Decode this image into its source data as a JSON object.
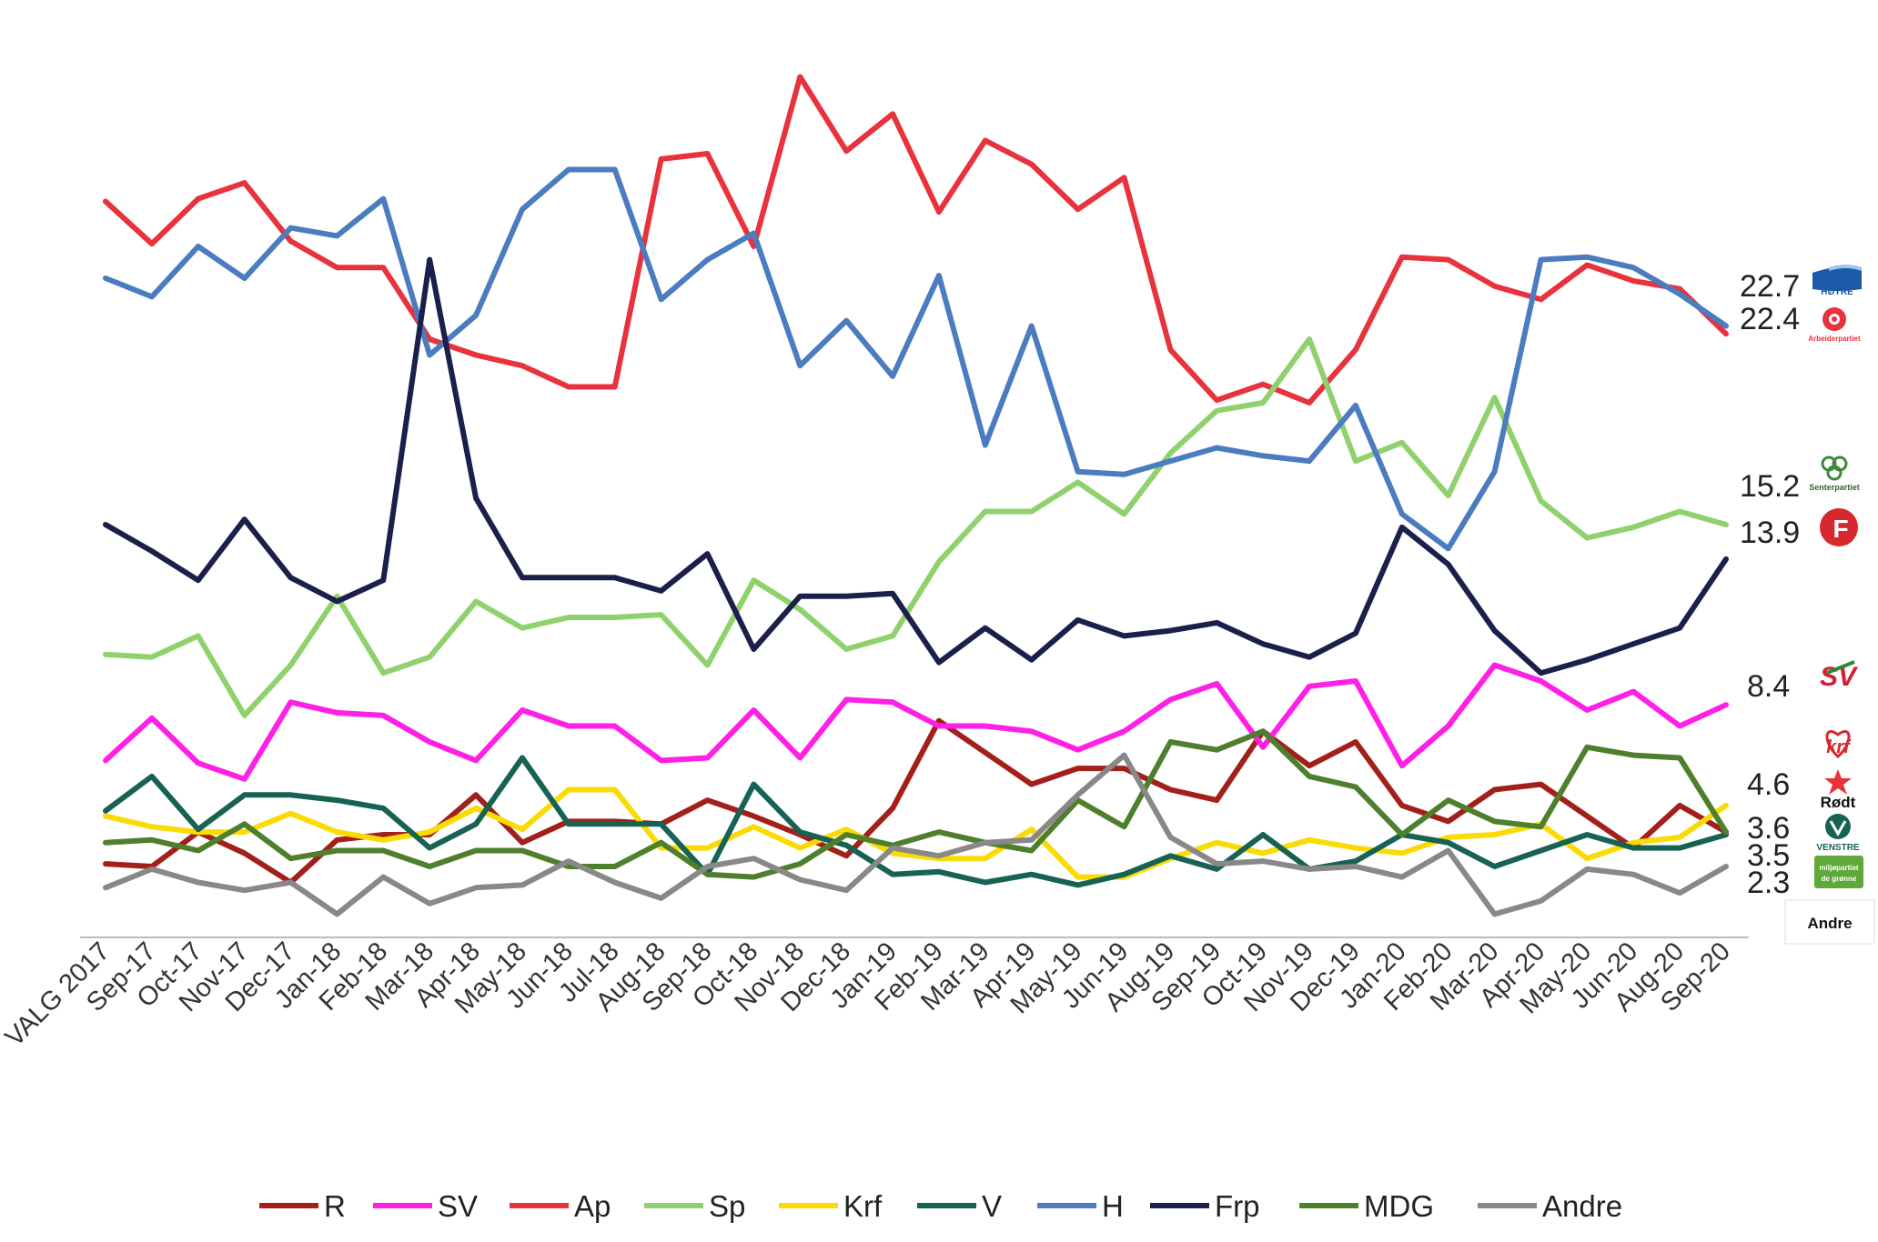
{
  "chart_data": {
    "type": "line",
    "title": "",
    "xlabel": "",
    "ylabel": "",
    "ylim": [
      0,
      35
    ],
    "grid": false,
    "legend": "bottom",
    "categories": [
      "VALG 2017",
      "Sep-17",
      "Oct-17",
      "Nov-17",
      "Dec-17",
      "Jan-18",
      "Feb-18",
      "Mar-18",
      "Apr-18",
      "May-18",
      "Jun-18",
      "Jul-18",
      "Aug-18",
      "Sep-18",
      "Oct-18",
      "Nov-18",
      "Dec-18",
      "Jan-19",
      "Feb-19",
      "Mar-19",
      "Apr-19",
      "May-19",
      "Jun-19",
      "Aug-19",
      "Sep-19",
      "Oct-19",
      "Nov-19",
      "Dec-19",
      "Jan-20",
      "Feb-20",
      "Mar-20",
      "Apr-20",
      "May-20",
      "Jun-20",
      "Aug-20",
      "Sep-20"
    ],
    "series": [
      {
        "name": "R",
        "color": "#a31f1a",
        "values": [
          2.4,
          2.3,
          3.6,
          2.8,
          1.7,
          3.3,
          3.5,
          3.5,
          5.0,
          3.2,
          4.0,
          4.0,
          3.9,
          4.8,
          4.2,
          3.5,
          2.7,
          4.5,
          7.8,
          6.6,
          5.4,
          6.0,
          6.0,
          5.2,
          4.8,
          7.4,
          6.1,
          7.0,
          4.6,
          4.0,
          5.2,
          5.4,
          4.2,
          3.0,
          4.6,
          3.6
        ]
      },
      {
        "name": "SV",
        "color": "#ff1fe6",
        "values": [
          6.3,
          7.9,
          6.2,
          5.6,
          8.5,
          8.1,
          8.0,
          7.0,
          6.3,
          8.2,
          7.6,
          7.6,
          6.3,
          6.4,
          8.2,
          6.4,
          8.6,
          8.5,
          7.6,
          7.6,
          7.4,
          6.7,
          7.4,
          8.6,
          9.2,
          6.8,
          9.1,
          9.3,
          6.1,
          7.6,
          9.9,
          9.3,
          8.2,
          8.9,
          7.6,
          8.4
        ]
      },
      {
        "name": "Ap",
        "color": "#e8323c",
        "values": [
          27.4,
          25.8,
          27.5,
          28.1,
          25.9,
          24.9,
          24.9,
          22.2,
          21.6,
          21.2,
          20.4,
          20.4,
          29.0,
          29.2,
          25.7,
          32.1,
          29.3,
          30.7,
          27.0,
          29.7,
          28.8,
          27.1,
          28.3,
          21.8,
          19.9,
          20.5,
          19.8,
          21.8,
          25.3,
          25.2,
          24.2,
          23.7,
          25.0,
          24.4,
          24.1,
          22.4
        ]
      },
      {
        "name": "Sp",
        "color": "#8fd16c",
        "values": [
          10.3,
          10.2,
          11.0,
          8.0,
          9.9,
          12.5,
          9.6,
          10.2,
          12.3,
          11.3,
          11.7,
          11.7,
          11.8,
          9.9,
          13.1,
          12.0,
          10.5,
          11.0,
          13.8,
          15.7,
          15.7,
          16.8,
          15.6,
          17.9,
          19.5,
          19.8,
          22.2,
          17.6,
          18.3,
          16.3,
          20.0,
          16.1,
          14.7,
          15.1,
          15.7,
          15.2
        ]
      },
      {
        "name": "Krf",
        "color": "#fbdb05",
        "values": [
          4.2,
          3.8,
          3.6,
          3.6,
          4.3,
          3.6,
          3.3,
          3.6,
          4.5,
          3.7,
          5.2,
          5.2,
          3.0,
          3.0,
          3.8,
          3.0,
          3.7,
          2.8,
          2.6,
          2.6,
          3.7,
          1.9,
          1.9,
          2.6,
          3.2,
          2.8,
          3.3,
          3.0,
          2.8,
          3.4,
          3.5,
          3.9,
          2.6,
          3.2,
          3.4,
          4.6
        ]
      },
      {
        "name": "V",
        "color": "#176253",
        "values": [
          4.4,
          5.7,
          3.7,
          5.0,
          5.0,
          4.8,
          4.5,
          3.0,
          3.9,
          6.4,
          3.9,
          3.9,
          3.9,
          2.0,
          5.4,
          3.6,
          3.1,
          2.0,
          2.1,
          1.7,
          2.0,
          1.6,
          2.0,
          2.7,
          2.2,
          3.5,
          2.2,
          2.5,
          3.5,
          3.2,
          2.3,
          2.9,
          3.5,
          3.0,
          3.0,
          3.5
        ]
      },
      {
        "name": "H",
        "color": "#4a7cbf",
        "values": [
          24.5,
          23.8,
          25.7,
          24.5,
          26.4,
          26.1,
          27.5,
          21.6,
          23.1,
          27.1,
          28.6,
          28.6,
          23.7,
          25.2,
          26.2,
          21.2,
          22.9,
          20.8,
          24.6,
          18.2,
          22.7,
          17.2,
          17.1,
          17.6,
          18.1,
          17.8,
          17.6,
          19.7,
          15.6,
          14.3,
          17.2,
          25.2,
          25.3,
          24.9,
          23.9,
          22.7
        ]
      },
      {
        "name": "Frp",
        "color": "#1b1f4b",
        "values": [
          15.2,
          14.2,
          13.1,
          15.4,
          13.2,
          12.3,
          13.1,
          25.2,
          16.2,
          13.2,
          13.2,
          13.2,
          12.7,
          14.1,
          10.5,
          12.5,
          12.5,
          12.6,
          10.0,
          11.3,
          10.1,
          11.6,
          11.0,
          11.2,
          11.5,
          10.7,
          10.2,
          11.1,
          15.1,
          13.7,
          11.2,
          9.6,
          10.1,
          10.7,
          11.3,
          13.9
        ]
      },
      {
        "name": "MDG",
        "color": "#4e7f2c",
        "values": [
          3.2,
          3.3,
          2.9,
          3.9,
          2.6,
          2.9,
          2.9,
          2.3,
          2.9,
          2.9,
          2.3,
          2.3,
          3.2,
          2.0,
          1.9,
          2.4,
          3.5,
          3.1,
          3.6,
          3.2,
          2.9,
          4.8,
          3.8,
          7.0,
          6.7,
          7.4,
          5.7,
          5.3,
          3.5,
          4.8,
          4.0,
          3.8,
          6.8,
          6.5,
          6.4,
          3.6
        ]
      },
      {
        "name": "Andre",
        "color": "#888888",
        "values": [
          1.5,
          2.2,
          1.7,
          1.4,
          1.7,
          0.5,
          1.9,
          0.9,
          1.5,
          1.6,
          2.5,
          1.7,
          1.1,
          2.3,
          2.6,
          1.8,
          1.4,
          3.0,
          2.7,
          3.2,
          3.3,
          5.0,
          6.5,
          3.4,
          2.4,
          2.5,
          2.2,
          2.3,
          1.9,
          2.9,
          0.5,
          1.0,
          2.2,
          2.0,
          1.3,
          2.3
        ]
      }
    ],
    "end_labels": [
      "22.7",
      "22.4",
      "15.2",
      "13.9",
      "8.4",
      "4.6",
      "3.6",
      "3.5",
      "2.3"
    ]
  },
  "logos": {
    "hoyre": "HØYRE",
    "arbeiderpartiet": "Arbeiderpartiet",
    "senterpartiet": "Senterpartiet",
    "frp": "F",
    "sv": "SV",
    "krf": "krf",
    "rodt": "Rødt",
    "venstre": "VENSTRE",
    "mdg": "miljøpartiet de grønne",
    "andre": "Andre"
  }
}
